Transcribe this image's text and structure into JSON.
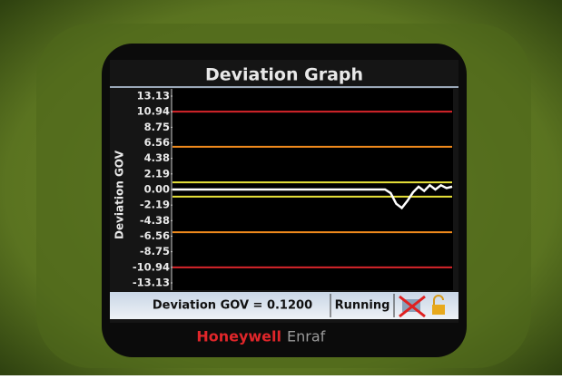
{
  "chart_data": {
    "type": "line",
    "title": "Deviation Graph",
    "y_label": "Deviation GOV",
    "x": [
      0,
      76,
      78,
      80,
      82,
      84,
      86,
      88,
      90,
      92,
      94,
      96,
      98,
      100
    ],
    "xlim": [
      0,
      100
    ],
    "series": [
      {
        "color": "#ffffff",
        "values": [
          0,
          0,
          -0.5,
          -2,
          -2.6,
          -1.6,
          -0.4,
          0.4,
          -0.2,
          0.6,
          0,
          0.6,
          0.2,
          0.4
        ]
      }
    ],
    "reference_lines": [
      {
        "value": 10.94,
        "color": "#d8262b"
      },
      {
        "value": 6,
        "color": "#f08a1c"
      },
      {
        "value": 1,
        "color": "#e8e23a"
      },
      {
        "value": -1,
        "color": "#e8e23a"
      },
      {
        "value": -6,
        "color": "#f08a1c"
      },
      {
        "value": -10.94,
        "color": "#d8262b"
      }
    ],
    "ylim": [
      -13.13,
      13.13
    ],
    "yticks": [
      13.13,
      10.94,
      8.75,
      6.56,
      4.38,
      2.19,
      {
        "value": 0,
        "label": "0.00"
      },
      -2.19,
      -4.38,
      -6.56,
      -8.75,
      -10.94,
      -13.13
    ]
  },
  "status": {
    "reading": "Deviation GOV = 0.1200",
    "state": "Running"
  },
  "brand": {
    "name": "Honeywell",
    "product": "Enraf"
  }
}
